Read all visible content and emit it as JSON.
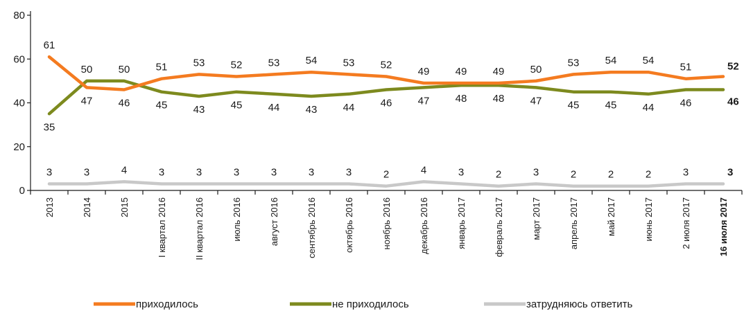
{
  "chart_data": {
    "type": "line",
    "ylim": [
      0,
      80
    ],
    "yticks": [
      "0",
      "20",
      "40",
      "60",
      "80"
    ],
    "categories": [
      "2013",
      "2014",
      "2015",
      "I квартал 2016",
      "II квартал 2016",
      "июль 2016",
      "август 2016",
      "сентябрь 2016",
      "октябрь 2016",
      "ноябрь 2016",
      "декабрь 2016",
      "январь 2017",
      "февраль 2017",
      "март 2017",
      "апрель 2017",
      "май 2017",
      "июнь 2017",
      "2 июля 2017",
      "16 июля 2017"
    ],
    "bold_last_category": true,
    "series": [
      {
        "name": "приходилось",
        "color": "#f47b20",
        "values": [
          61,
          47,
          46,
          51,
          53,
          52,
          53,
          54,
          53,
          52,
          49,
          49,
          49,
          50,
          53,
          54,
          54,
          51,
          52
        ]
      },
      {
        "name": "не приходилось",
        "color": "#7d8a1e",
        "values": [
          35,
          50,
          50,
          45,
          43,
          45,
          44,
          43,
          44,
          46,
          47,
          48,
          48,
          47,
          45,
          45,
          44,
          46,
          46
        ]
      },
      {
        "name": "затрудняюсь ответить",
        "color": "#c8c8c8",
        "values": [
          3,
          3,
          4,
          3,
          3,
          3,
          3,
          3,
          3,
          2,
          4,
          3,
          2,
          3,
          2,
          2,
          2,
          3,
          3
        ]
      }
    ],
    "legend": {
      "position": "bottom"
    },
    "grid": false
  }
}
